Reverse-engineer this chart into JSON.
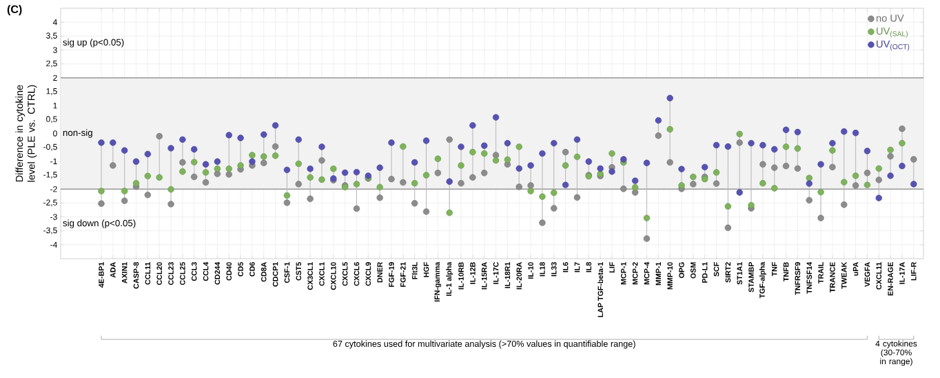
{
  "chart_data": {
    "type": "scatter",
    "title": "(C)",
    "ylabel": "Difference in cytokine level (PLE vs. CTRL)",
    "categories": [
      "4E-BP1",
      "ADA",
      "AXIN1",
      "CASP-8",
      "CCL11",
      "CCL20",
      "CCL23",
      "CCL25",
      "CCL3",
      "CCL4",
      "CD244",
      "CD40",
      "CD5",
      "CD6",
      "CD8A",
      "CDCP1",
      "CSF-1",
      "CST5",
      "CX3CL1",
      "CXCL1",
      "CXCL10",
      "CXCL5",
      "CXCL6",
      "CXCL9",
      "DNER",
      "FGF-19",
      "FGF-21",
      "Flt3L",
      "HGF",
      "IFN-gamma",
      "IL-1 alpha",
      "IL-10RB",
      "IL-12B",
      "IL-15RA",
      "IL-17C",
      "IL-18R1",
      "IL-20RA",
      "IL-10",
      "IL18",
      "IL33",
      "IL6",
      "IL7",
      "IL8",
      "LAP TGF-beta-1",
      "LIF",
      "MCP-1",
      "MCP-2",
      "MCP-4",
      "MMP-1",
      "MMP-10",
      "OPG",
      "OSM",
      "PD-L1",
      "SCF",
      "SIRT2",
      "ST1A1",
      "STAMBP",
      "TGF-alpha",
      "TNF",
      "TNFB",
      "TNFRSF9",
      "TNFSF14",
      "TRAIL",
      "TRANCE",
      "TWEAK",
      "uPA",
      "VEGFA",
      "CXCL11",
      "EN-RAGE",
      "IL-17A",
      "LIF-R"
    ],
    "series": [
      {
        "name": "no UV",
        "color": "#8c8c8c",
        "values": [
          -2.52,
          -1.15,
          -2.42,
          -1.91,
          -2.21,
          -0.1,
          -2.54,
          -1.04,
          -1.56,
          -1.76,
          -1.45,
          -1.47,
          -1.29,
          -1.15,
          -1.06,
          -0.47,
          -2.49,
          -1.82,
          -2.35,
          -0.97,
          -1.68,
          -1.87,
          -2.7,
          -1.62,
          -2.31,
          -1.64,
          -1.76,
          -2.51,
          -2.81,
          -1.42,
          -0.22,
          -1.79,
          -1.58,
          -1.42,
          -0.78,
          -1.11,
          -1.92,
          -1.87,
          -3.21,
          -2.69,
          -0.67,
          -2.3,
          -1.5,
          -1.53,
          -1.22,
          -1.99,
          -2.12,
          -3.78,
          -0.08,
          -1.04,
          -1.99,
          -1.82,
          -1.56,
          -1.8,
          -3.39,
          -0.33,
          -2.69,
          -1.11,
          -1.23,
          -1.17,
          -1.26,
          -2.4,
          -3.04,
          -1.21,
          -2.56,
          -1.87,
          -1.42,
          -1.67,
          -0.82,
          0.17,
          -0.93
        ]
      },
      {
        "name": "UV$_{(SAL)}$",
        "color": "#7db45a",
        "values": [
          -2.07,
          null,
          -2.07,
          -1.79,
          -1.53,
          -1.58,
          -2.01,
          -1.37,
          -1.03,
          -1.4,
          -1.27,
          -1.27,
          -1.15,
          -0.78,
          -0.83,
          -0.8,
          -2.23,
          -1.09,
          -1.58,
          -1.66,
          -1.27,
          -1.93,
          -1.82,
          -1.58,
          -1.93,
          null,
          -0.47,
          -1.79,
          -1.5,
          -0.91,
          -2.85,
          -1.15,
          -0.67,
          -0.72,
          -0.97,
          -0.94,
          -0.48,
          -2.07,
          -2.27,
          -2.13,
          -1.15,
          -0.84,
          -1.54,
          -1.45,
          -0.72,
          -1.04,
          -1.94,
          -3.04,
          null,
          0.15,
          -1.87,
          -1.56,
          -1.64,
          -1.4,
          -2.62,
          -0.02,
          -2.58,
          -1.79,
          -1.97,
          -0.48,
          -0.54,
          -1.6,
          -2.11,
          -0.61,
          -1.75,
          -1.52,
          -1.85,
          -1.26,
          -0.59,
          -0.35,
          null
        ]
      },
      {
        "name": "UV$_{(OCT)}$",
        "color": "#5652b5",
        "values": [
          -0.33,
          -0.33,
          -0.61,
          -1.01,
          -0.74,
          null,
          -0.53,
          -0.22,
          -0.57,
          -1.11,
          -1.01,
          -0.06,
          -0.16,
          -1.01,
          -0.04,
          0.29,
          -1.31,
          -0.22,
          -1.27,
          -0.48,
          -1.62,
          -1.41,
          -1.39,
          -1.52,
          -1.23,
          -0.33,
          null,
          -1.04,
          -0.26,
          null,
          -1.73,
          -0.48,
          0.29,
          -0.44,
          0.58,
          -0.35,
          -1.26,
          -1.15,
          -0.72,
          -0.35,
          -1.85,
          -0.22,
          -1.01,
          -1.26,
          -1.37,
          -0.93,
          -1.7,
          -1.06,
          0.47,
          1.27,
          -1.28,
          null,
          -1.21,
          -0.42,
          -0.47,
          -2.12,
          -0.35,
          -0.42,
          -0.57,
          0.13,
          0.05,
          -1.8,
          -1.11,
          -0.35,
          0.07,
          0.02,
          -0.63,
          -2.32,
          -1.52,
          -1.17,
          -1.82
        ]
      }
    ],
    "ylim": [
      -4.5,
      4.5
    ],
    "yticks": [
      4,
      {
        "value": 3.5,
        "label": "3,5"
      },
      3,
      {
        "value": 2.5,
        "label": "2,5"
      },
      2,
      {
        "value": 1.5,
        "label": "1,5"
      },
      1,
      {
        "value": 0.5,
        "label": "0,5"
      },
      0,
      {
        "value": -0.5,
        "label": "-0,5"
      },
      -1,
      {
        "value": -1.5,
        "label": "-1,5"
      },
      -2,
      {
        "value": -2.5,
        "label": "-2,5"
      },
      -3,
      {
        "value": -3.5,
        "label": "-3,5"
      },
      -4
    ],
    "bands": [
      {
        "axis": "y",
        "from": -2,
        "to": 2,
        "label": "non-sig",
        "color": "#f2f2f2"
      }
    ],
    "annotations": [
      "sig up (p<0.05)",
      "sig down (p<0.05)",
      "67 cytokines used for multivariate analysis (>70% values in quantifiable range)",
      "4 cytokines (30-70% in range)"
    ],
    "grid": true,
    "legend": "top right",
    "marker": "circle"
  }
}
